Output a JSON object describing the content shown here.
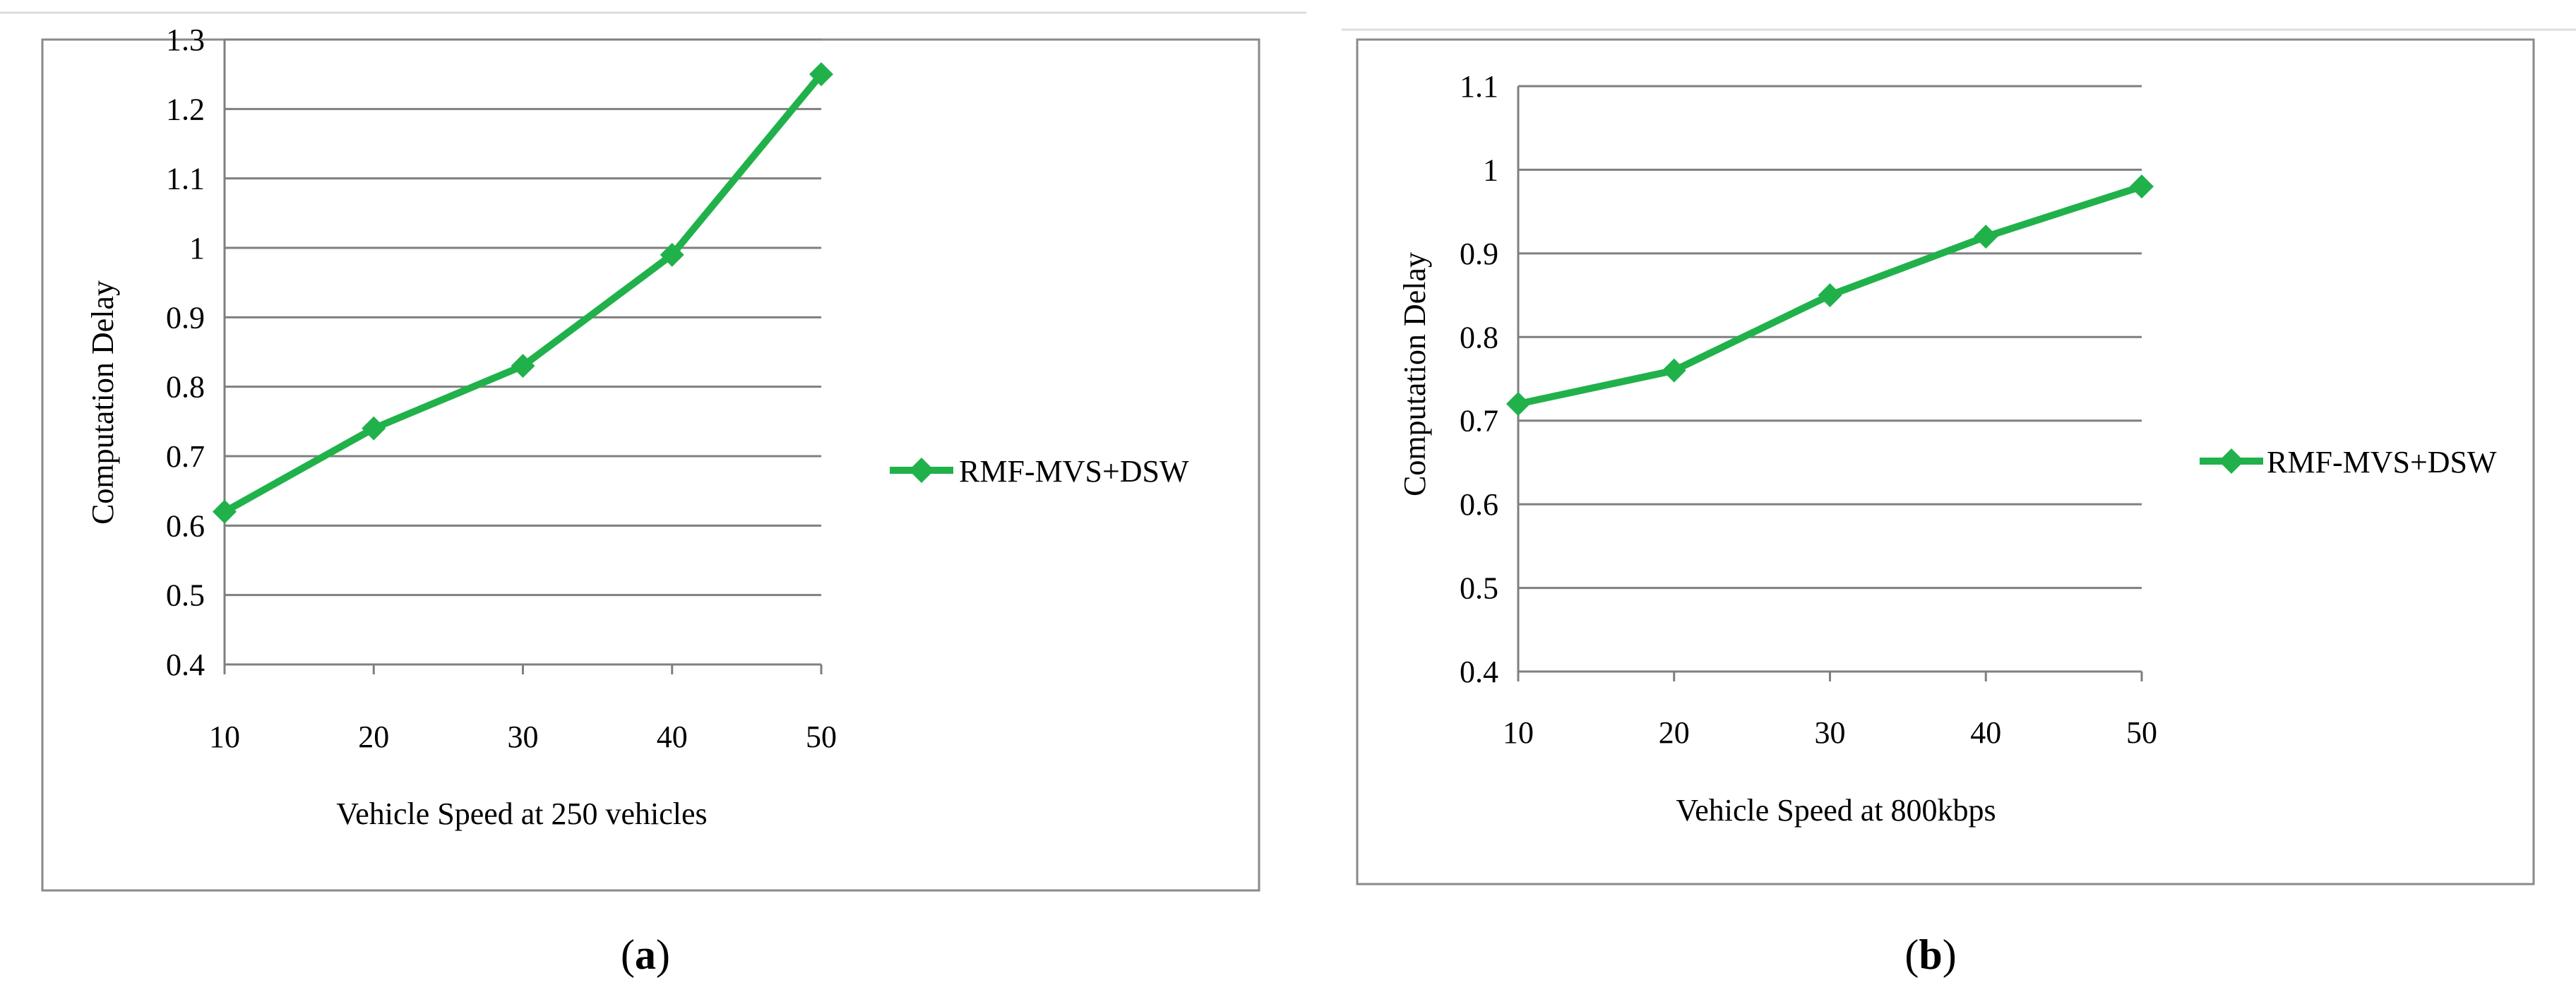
{
  "chart_data": [
    {
      "type": "line",
      "caption": "a",
      "xlabel": "Vehicle Speed at 250 vehicles",
      "ylabel": "Computation Delay",
      "x": [
        10,
        20,
        30,
        40,
        50
      ],
      "y_ticks": [
        "0.4",
        "0.5",
        "0.6",
        "0.7",
        "0.8",
        "0.9",
        "1",
        "1.1",
        "1.2",
        "1.3"
      ],
      "ylim": [
        0.4,
        1.3
      ],
      "grid": true,
      "legend_position": "right",
      "series": [
        {
          "name": "RMF-MVS+DSW",
          "color": "#21b14b",
          "values": [
            0.62,
            0.74,
            0.83,
            0.99,
            1.25
          ]
        }
      ]
    },
    {
      "type": "line",
      "caption": "b",
      "xlabel": "Vehicle Speed at 800kbps",
      "ylabel": "Computation Delay",
      "x": [
        10,
        20,
        30,
        40,
        50
      ],
      "y_ticks": [
        "0.4",
        "0.5",
        "0.6",
        "0.7",
        "0.8",
        "0.9",
        "1",
        "1.1"
      ],
      "ylim": [
        0.4,
        1.1
      ],
      "grid": true,
      "legend_position": "right",
      "series": [
        {
          "name": "RMF-MVS+DSW",
          "color": "#21b14b",
          "values": [
            0.72,
            0.76,
            0.85,
            0.92,
            0.98
          ]
        }
      ]
    }
  ]
}
